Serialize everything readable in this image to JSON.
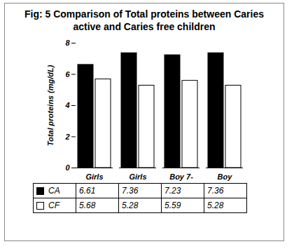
{
  "chart_data": {
    "type": "bar",
    "title": "Fig: 5 Comparison of Total proteins between Caries active and Caries free children",
    "y_label": "Total proteins (mg/dL)",
    "categories": [
      "Girls",
      "Girls",
      "Boy 7-",
      "Boy"
    ],
    "series": [
      {
        "name": "CA",
        "color": "#000000",
        "values": [
          6.61,
          7.36,
          7.23,
          7.36
        ]
      },
      {
        "name": "CF",
        "color": "#ffffff",
        "values": [
          5.68,
          5.28,
          5.59,
          5.28
        ]
      }
    ],
    "ylim": [
      0,
      8
    ],
    "yticks": [
      0,
      2,
      4,
      6,
      8
    ],
    "grid": false,
    "legend": "bottom"
  }
}
